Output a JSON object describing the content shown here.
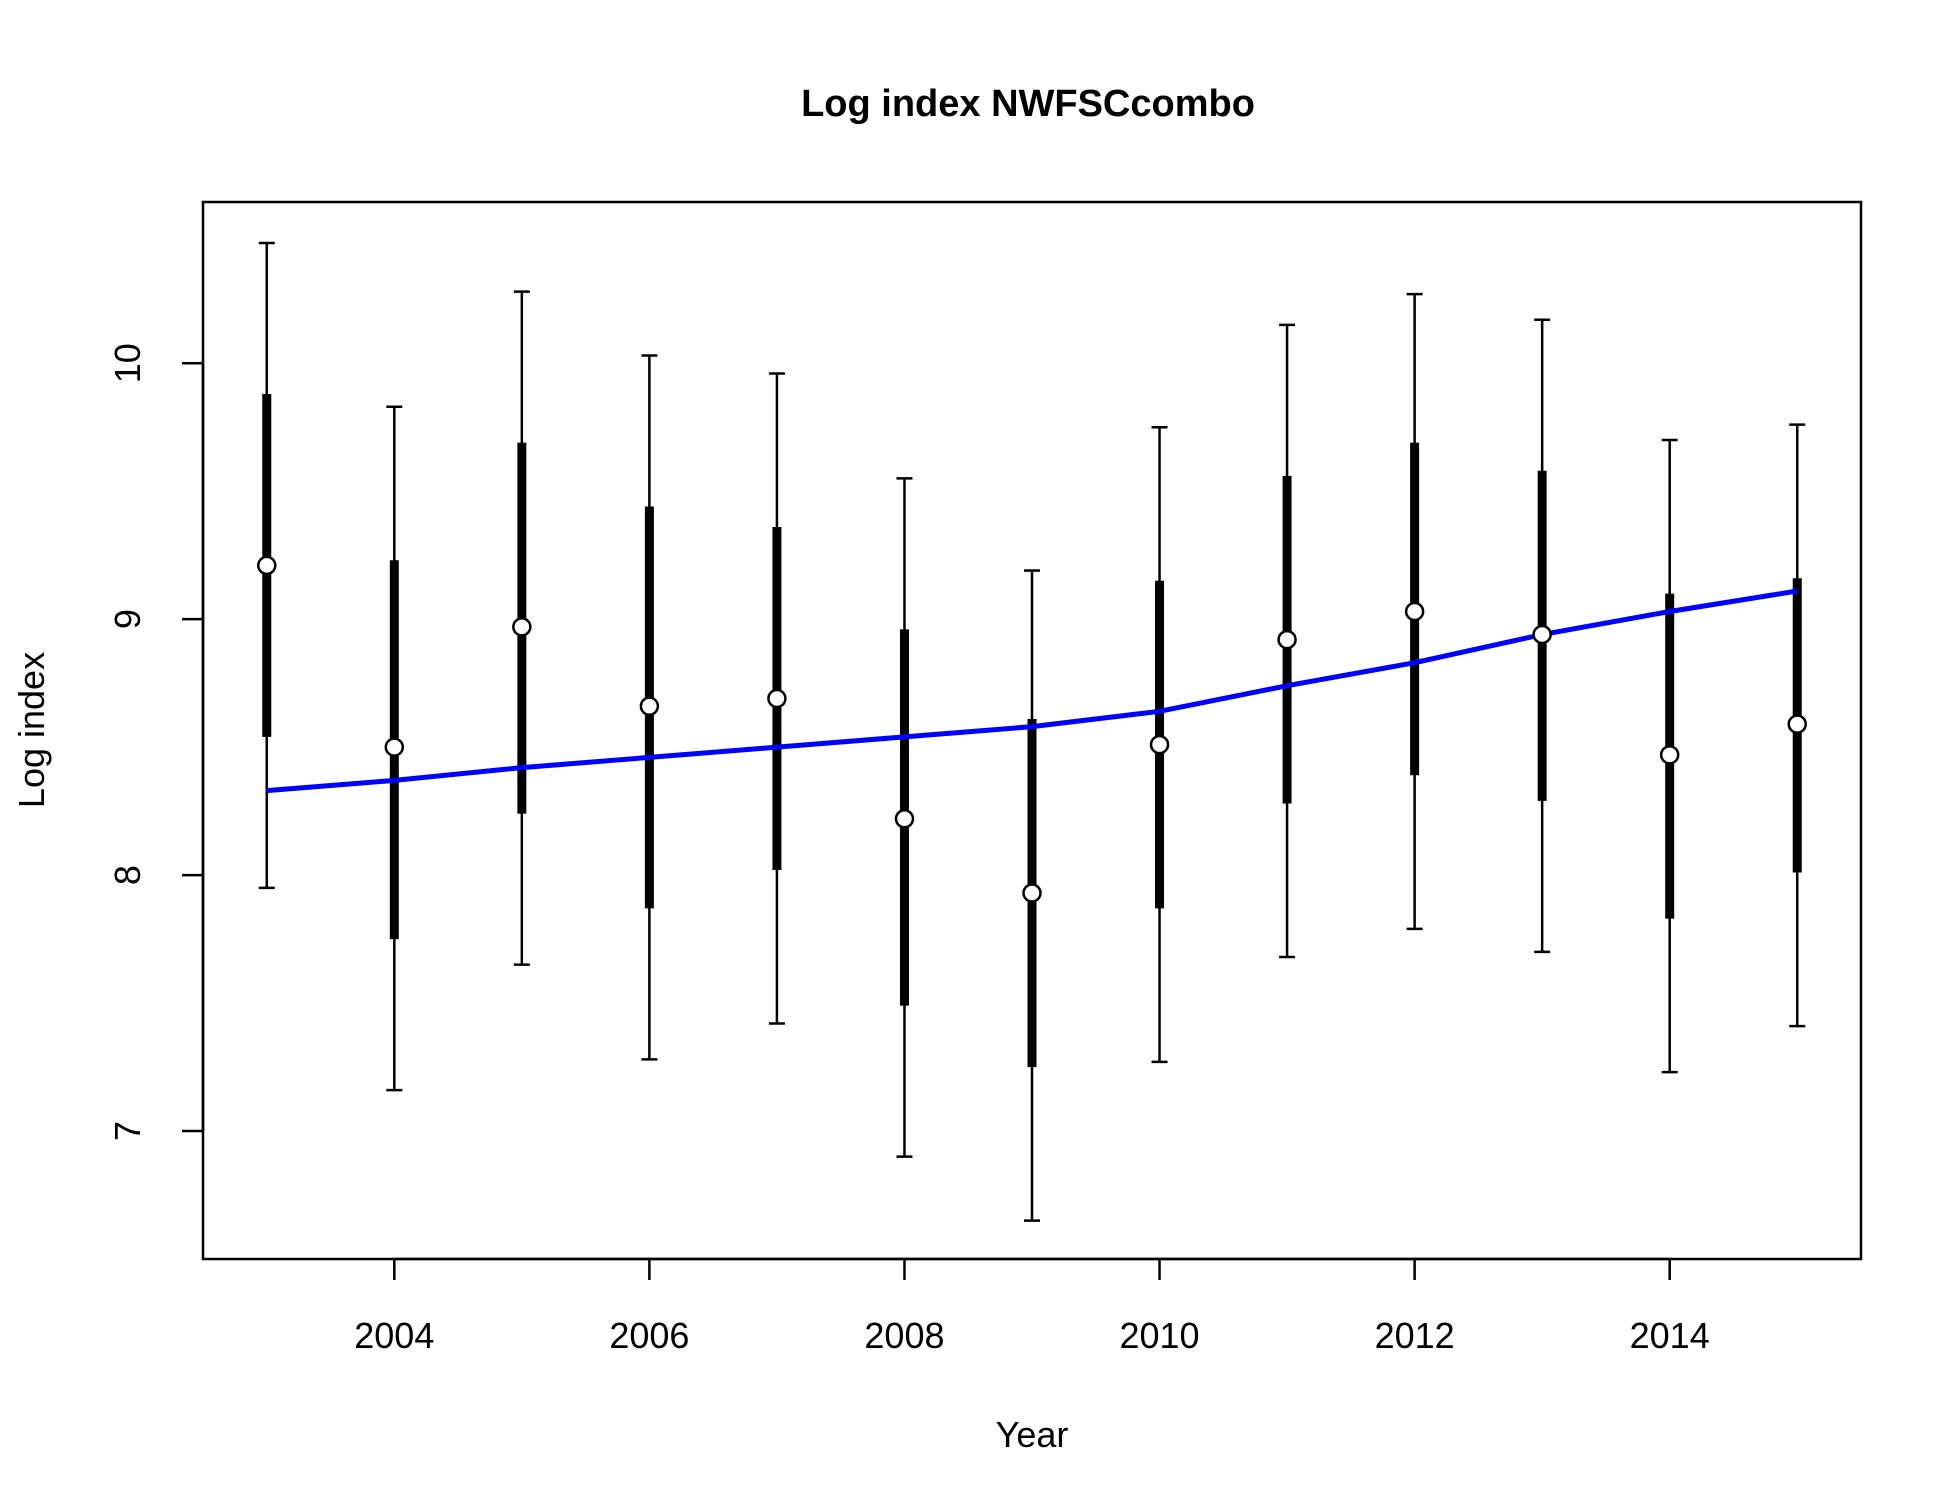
{
  "chart_data": {
    "type": "scatter",
    "title": "Log index NWFSCcombo",
    "xlabel": "Year",
    "ylabel": "Log index",
    "xlim": [
      2002.5,
      2015.5
    ],
    "ylim": [
      6.5,
      10.63
    ],
    "x_ticks": [
      2004,
      2006,
      2008,
      2010,
      2012,
      2014
    ],
    "x_tick_labels": [
      "2004",
      "2006",
      "2008",
      "2010",
      "2012",
      "2014"
    ],
    "y_ticks": [
      7,
      8,
      9,
      10
    ],
    "y_tick_labels": [
      "7",
      "8",
      "9",
      "10"
    ],
    "grid": false,
    "legend": "none",
    "colors": {
      "fit_line": "#0000ff",
      "points": "#000000",
      "point_fill": "#ffffff"
    },
    "series": [
      {
        "kind": "observed",
        "x": [
          2003,
          2004,
          2005,
          2006,
          2007,
          2008,
          2009,
          2010,
          2011,
          2012,
          2013,
          2014,
          2015
        ],
        "y": [
          9.21,
          8.5,
          8.97,
          8.66,
          8.69,
          8.22,
          7.93,
          8.51,
          8.92,
          9.03,
          8.94,
          8.47,
          8.59
        ],
        "inner_lower": [
          8.54,
          7.75,
          8.24,
          7.87,
          8.02,
          7.49,
          7.25,
          7.87,
          8.28,
          8.39,
          8.29,
          7.83,
          8.01
        ],
        "inner_upper": [
          9.88,
          9.23,
          9.69,
          9.44,
          9.36,
          8.96,
          8.61,
          9.15,
          9.56,
          9.69,
          9.58,
          9.1,
          9.16
        ],
        "outer_lower": [
          7.95,
          7.16,
          7.65,
          7.28,
          7.42,
          6.9,
          6.65,
          7.27,
          7.68,
          7.79,
          7.7,
          7.23,
          7.41
        ],
        "outer_upper": [
          10.47,
          9.83,
          10.28,
          10.03,
          9.96,
          9.55,
          9.19,
          9.75,
          10.15,
          10.27,
          10.17,
          9.7,
          9.76
        ]
      },
      {
        "kind": "expected",
        "x": [
          2003,
          2004,
          2005,
          2006,
          2007,
          2008,
          2009,
          2010,
          2011,
          2012,
          2013,
          2014,
          2015
        ],
        "y": [
          8.33,
          8.37,
          8.42,
          8.46,
          8.5,
          8.54,
          8.58,
          8.64,
          8.74,
          8.83,
          8.94,
          9.03,
          9.11
        ]
      }
    ]
  }
}
